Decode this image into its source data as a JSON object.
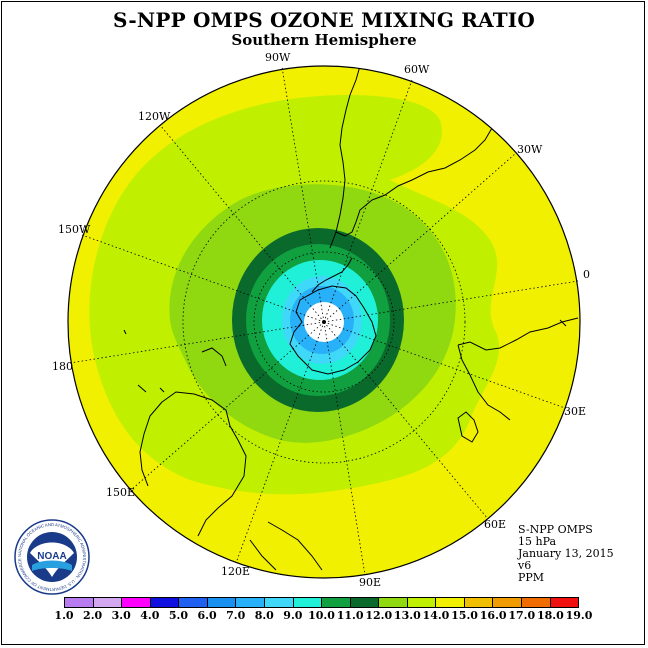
{
  "title": "S-NPP OMPS OZONE MIXING RATIO",
  "subtitle": "Southern Hemisphere",
  "longitude_labels": {
    "lon_90w": "90W",
    "lon_60w": "60W",
    "lon_30w": "30W",
    "lon_0": "0",
    "lon_30e": "30E",
    "lon_60e": "60E",
    "lon_90e": "90E",
    "lon_120e": "120E",
    "lon_150e": "150E",
    "lon_180": "180",
    "lon_150w": "150W",
    "lon_120w": "120W"
  },
  "info": {
    "instrument": "S-NPP OMPS",
    "level": "15 hPa",
    "date": "January 13, 2015",
    "version": "v6",
    "units": "PPM"
  },
  "logo": {
    "text": "NOAA",
    "ring_text": "NATIONAL OCEANIC AND ATMOSPHERIC ADMINISTRATION · U.S. DEPARTMENT OF COMMERCE"
  },
  "colorbar": {
    "labels": [
      "1.0",
      "2.0",
      "3.0",
      "4.0",
      "5.0",
      "6.0",
      "7.0",
      "8.0",
      "9.0",
      "10.0",
      "11.0",
      "12.0",
      "13.0",
      "14.0",
      "15.0",
      "16.0",
      "17.0",
      "18.0",
      "19.0"
    ],
    "colors": [
      "#b87cf0",
      "#d4a8f0",
      "#ff00ff",
      "#1010e0",
      "#2060f0",
      "#1890f0",
      "#28b0f8",
      "#40d8f8",
      "#20f0d8",
      "#10a040",
      "#0a6a2c",
      "#90d810",
      "#c0f000",
      "#f0f000",
      "#f0c000",
      "#f09c00",
      "#f06c00",
      "#f01010",
      "#8c5c3c"
    ]
  },
  "contour_levels_ppm": [
    {
      "level": 13.0,
      "color": "#c0f000"
    },
    {
      "level": 12.0,
      "color": "#90d810"
    },
    {
      "level": 11.0,
      "color": "#0a6a2c"
    },
    {
      "level": 10.0,
      "color": "#10a040"
    },
    {
      "level": 9.0,
      "color": "#20f0d8"
    },
    {
      "level": 8.0,
      "color": "#40d8f8"
    },
    {
      "level": 7.0,
      "color": "#28b0f8"
    }
  ],
  "colors": {
    "ocean_background": "#f0f000",
    "no_data": "#ffffff"
  }
}
